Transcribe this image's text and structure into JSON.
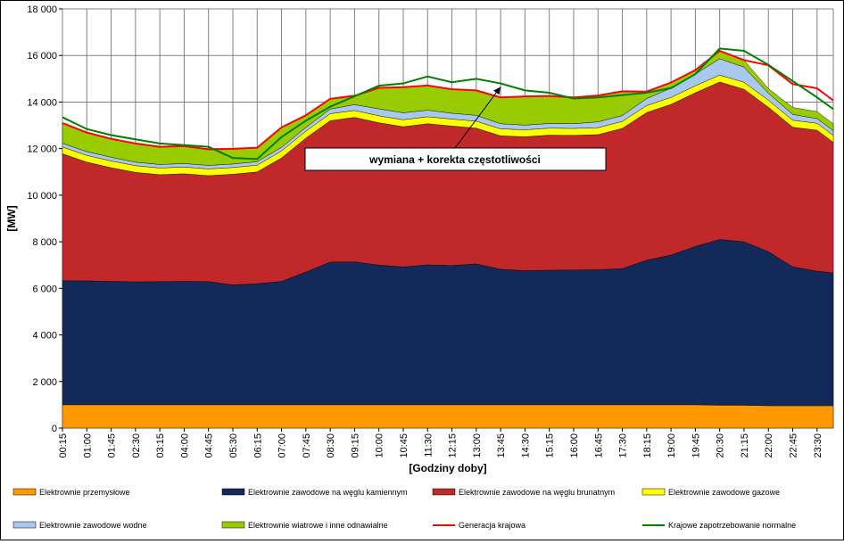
{
  "chart_data": {
    "type": "area",
    "stacked": true,
    "xlabel": "[Godziny doby]",
    "ylabel": "[MW]",
    "ylim": [
      0,
      18000
    ],
    "y_ticks": [
      0,
      2000,
      4000,
      6000,
      8000,
      10000,
      12000,
      14000,
      16000,
      18000
    ],
    "y_tick_labels": [
      "0",
      "2 000",
      "4 000",
      "6 000",
      "8 000",
      "10 000",
      "12 000",
      "14 000",
      "16 000",
      "18 000"
    ],
    "x_tick_labels": [
      "00:15",
      "01:00",
      "01:45",
      "02:30",
      "03:15",
      "04:00",
      "04:45",
      "05:30",
      "06:15",
      "07:00",
      "07:45",
      "08:30",
      "09:15",
      "10:00",
      "10:45",
      "11:30",
      "12:15",
      "13:00",
      "13:45",
      "14:30",
      "15:15",
      "16:00",
      "16:45",
      "17:30",
      "18:15",
      "19:00",
      "19:45",
      "20:30",
      "21:15",
      "22:00",
      "22:45",
      "23:30"
    ],
    "x_tick_hours": [
      0.25,
      1,
      1.75,
      2.5,
      3.25,
      4,
      4.75,
      5.5,
      6.25,
      7,
      7.75,
      8.5,
      9.25,
      10,
      10.75,
      11.5,
      12.25,
      13,
      13.75,
      14.5,
      15.25,
      16,
      16.75,
      17.5,
      18.25,
      19,
      19.75,
      20.5,
      21.25,
      22,
      22.75,
      23.5
    ],
    "grid": true,
    "legend_position": "bottom",
    "x_hours": [
      0.25,
      1,
      1.75,
      2.5,
      3.25,
      4,
      4.75,
      5.5,
      6.25,
      7,
      7.75,
      8.5,
      9.25,
      10,
      10.75,
      11.5,
      12.25,
      13,
      13.75,
      14.5,
      15.25,
      16,
      16.75,
      17.5,
      18.25,
      19,
      19.75,
      20.5,
      21.25,
      22,
      22.75,
      23.5,
      24
    ],
    "series": [
      {
        "name": "Elektrownie przemysłowe",
        "color": "#ff9900",
        "kind": "area",
        "values": [
          1000,
          1000,
          1000,
          1000,
          1000,
          1000,
          1000,
          1000,
          1000,
          1000,
          1000,
          1000,
          1000,
          1000,
          1000,
          1000,
          1000,
          1000,
          1000,
          1000,
          1000,
          1000,
          1000,
          1000,
          1000,
          1000,
          1000,
          980,
          980,
          960,
          960,
          960,
          960
        ]
      },
      {
        "name": "Elektrownie zawodowe na węglu kamiennym",
        "color": "#12295a",
        "kind": "area",
        "values": [
          5330,
          5320,
          5300,
          5280,
          5290,
          5300,
          5290,
          5150,
          5200,
          5300,
          5700,
          6130,
          6140,
          6000,
          5920,
          6010,
          5980,
          6050,
          5820,
          5760,
          5780,
          5790,
          5800,
          5850,
          6210,
          6430,
          6800,
          7120,
          7020,
          6620,
          5960,
          5780,
          5700
        ]
      },
      {
        "name": "Elektrownie zawodowe na węglu brunatnym",
        "color": "#c0282a",
        "kind": "area",
        "values": [
          5450,
          5100,
          4880,
          4700,
          4590,
          4620,
          4550,
          4750,
          4800,
          5300,
          5750,
          6070,
          6200,
          6110,
          6020,
          6060,
          5990,
          5830,
          5730,
          5750,
          5800,
          5780,
          5800,
          6020,
          6340,
          6470,
          6600,
          6760,
          6550,
          6200,
          6000,
          6050,
          5610
        ]
      },
      {
        "name": "Elektrownie zawodowe gazowe",
        "color": "#ffff00",
        "kind": "area",
        "values": [
          290,
          290,
          290,
          290,
          290,
          290,
          290,
          290,
          290,
          300,
          300,
          300,
          300,
          300,
          300,
          300,
          300,
          300,
          300,
          300,
          300,
          300,
          300,
          300,
          300,
          300,
          300,
          300,
          300,
          300,
          300,
          300,
          300
        ]
      },
      {
        "name": "Elektrownie zawodowe wodne",
        "color": "#a8c8f0",
        "kind": "area",
        "values": [
          160,
          160,
          160,
          150,
          150,
          150,
          150,
          150,
          150,
          160,
          160,
          200,
          250,
          300,
          300,
          280,
          250,
          250,
          220,
          200,
          200,
          200,
          250,
          250,
          300,
          400,
          500,
          700,
          650,
          300,
          250,
          200,
          200
        ]
      },
      {
        "name": "Elektrownie wiatrowe i inne odnawialne",
        "color": "#99cc00",
        "kind": "area",
        "values": [
          870,
          820,
          790,
          800,
          760,
          750,
          690,
          650,
          600,
          850,
          520,
          440,
          380,
          900,
          1100,
          1060,
          1030,
          1070,
          1130,
          1230,
          1180,
          1130,
          1130,
          1040,
          300,
          240,
          170,
          320,
          300,
          200,
          300,
          300,
          300
        ]
      },
      {
        "name": "Generacja krajowa",
        "color": "#ff0000",
        "kind": "line",
        "values": [
          13100,
          12690,
          12420,
          12220,
          12080,
          12110,
          11970,
          11990,
          12040,
          12910,
          13430,
          14140,
          14270,
          14610,
          14640,
          14710,
          14550,
          14500,
          14200,
          14240,
          14260,
          14200,
          14280,
          14460,
          14450,
          14840,
          15370,
          16200,
          15800,
          15580,
          14770,
          14590,
          14070
        ]
      },
      {
        "name": "Krajowe zapotrzebowanie normalne",
        "color": "#008000",
        "kind": "line",
        "values": [
          13350,
          12840,
          12580,
          12400,
          12220,
          12150,
          12080,
          11600,
          11550,
          12500,
          13200,
          13800,
          14250,
          14700,
          14800,
          15100,
          14850,
          15000,
          14800,
          14500,
          14400,
          14150,
          14200,
          14300,
          14400,
          14600,
          15200,
          16300,
          16200,
          15600,
          14900,
          14200,
          13700
        ]
      }
    ],
    "annotation": {
      "text": "wymiana + korekta częstotliwości",
      "target_hour": 13.75,
      "target_value": 14650
    }
  }
}
